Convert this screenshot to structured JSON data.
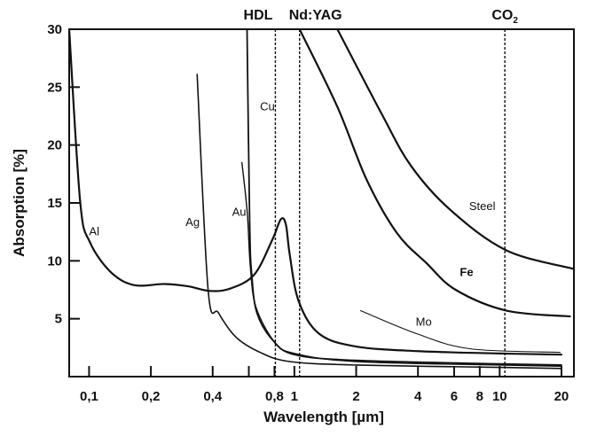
{
  "chart_data": {
    "type": "line",
    "title": "",
    "xlabel": "Wavelength [µm]",
    "ylabel": "Absorption [%]",
    "xscale": "log",
    "xlim": [
      0.08,
      23
    ],
    "ylim": [
      0,
      30
    ],
    "grid": false,
    "legend": "none (curves labelled inline)",
    "x_ticks": [
      {
        "value": 0.1,
        "label": "0,1"
      },
      {
        "value": 0.2,
        "label": "0,2"
      },
      {
        "value": 0.4,
        "label": "0,4"
      },
      {
        "value": 0.6,
        "label": ""
      },
      {
        "value": 0.8,
        "label": "0,8"
      },
      {
        "value": 1,
        "label": "1"
      },
      {
        "value": 2,
        "label": "2"
      },
      {
        "value": 4,
        "label": "4"
      },
      {
        "value": 6,
        "label": "6"
      },
      {
        "value": 8,
        "label": "8"
      },
      {
        "value": 10,
        "label": "10"
      },
      {
        "value": 20,
        "label": "20"
      }
    ],
    "y_ticks": [
      {
        "value": 5,
        "label": "5"
      },
      {
        "value": 10,
        "label": "10"
      },
      {
        "value": 15,
        "label": "15"
      },
      {
        "value": 20,
        "label": "20"
      },
      {
        "value": 25,
        "label": "25"
      },
      {
        "value": 30,
        "label": "30"
      }
    ],
    "laser_lines": [
      {
        "label": "HDL",
        "value": 0.808
      },
      {
        "label": "Nd:YAG",
        "value": 1.06
      },
      {
        "label": "CO",
        "subscript": "2",
        "value": 10.6
      }
    ],
    "series": [
      {
        "name": "Al",
        "width": 2.2,
        "label_at": [
          0.1,
          12.2
        ],
        "points": [
          [
            0.08,
            30
          ],
          [
            0.0905,
            15.1
          ],
          [
            0.101,
            11.6
          ],
          [
            0.128,
            9.0
          ],
          [
            0.166,
            7.9
          ],
          [
            0.234,
            8.0
          ],
          [
            0.304,
            7.8
          ],
          [
            0.386,
            7.4
          ],
          [
            0.486,
            7.6
          ],
          [
            0.637,
            8.8
          ],
          [
            0.78,
            11.8
          ],
          [
            0.86,
            13.6
          ],
          [
            0.91,
            13.1
          ],
          [
            0.95,
            10.5
          ],
          [
            1.05,
            6.5
          ],
          [
            1.32,
            3.7
          ],
          [
            2,
            2.6
          ],
          [
            4,
            2.2
          ],
          [
            10,
            2.0
          ],
          [
            20,
            1.9
          ]
        ]
      },
      {
        "name": "Ag",
        "width": 1.6,
        "label_at": [
          0.295,
          13.0
        ],
        "points": [
          [
            0.336,
            26.1
          ],
          [
            0.38,
            7.5
          ],
          [
            0.427,
            5.5
          ],
          [
            0.52,
            3.4
          ],
          [
            0.68,
            2.1
          ],
          [
            0.95,
            1.3
          ],
          [
            2,
            1.0
          ],
          [
            10,
            0.8
          ],
          [
            20,
            0.7
          ]
        ]
      },
      {
        "name": "Au",
        "width": 1.4,
        "label_at": [
          0.497,
          13.9
        ],
        "points": [
          [
            0.555,
            18.5
          ],
          [
            0.59,
            14.1
          ],
          [
            0.61,
            9.5
          ],
          [
            0.65,
            6.0
          ],
          [
            0.8,
            3.0
          ],
          [
            1.0,
            2.0
          ],
          [
            2,
            1.3
          ],
          [
            10,
            1.0
          ],
          [
            20,
            0.9
          ]
        ]
      },
      {
        "name": "Cu",
        "width": 1.8,
        "label_at": [
          0.68,
          23
        ],
        "points": [
          [
            0.588,
            30
          ],
          [
            0.606,
            13.1
          ],
          [
            0.62,
            8.8
          ],
          [
            0.657,
            5.5
          ],
          [
            0.78,
            3.2
          ],
          [
            1.0,
            1.9
          ],
          [
            2,
            1.4
          ],
          [
            10,
            1.1
          ],
          [
            20,
            1.0
          ]
        ]
      },
      {
        "name": "Steel",
        "width": 2.2,
        "label_at": [
          7.1,
          14.4
        ],
        "points": [
          [
            1.62,
            30
          ],
          [
            2.66,
            22.7
          ],
          [
            3.7,
            18.2
          ],
          [
            5.75,
            14.4
          ],
          [
            10.8,
            10.9
          ],
          [
            23,
            9.3
          ]
        ]
      },
      {
        "name": "Fe",
        "width": 2.2,
        "label_at": [
          6.4,
          8.7
        ],
        "points": [
          [
            1.06,
            30
          ],
          [
            1.62,
            23.3
          ],
          [
            2.25,
            17
          ],
          [
            3.16,
            12.4
          ],
          [
            4.4,
            9.8
          ],
          [
            6.1,
            7.5
          ],
          [
            10.8,
            5.7
          ],
          [
            22,
            5.2
          ]
        ]
      },
      {
        "name": "Mo",
        "width": 1.1,
        "label_at": [
          3.9,
          4.4
        ],
        "points": [
          [
            2.1,
            5.7
          ],
          [
            3.95,
            3.7
          ],
          [
            7.2,
            2.4
          ],
          [
            19.7,
            2.1
          ]
        ]
      }
    ]
  }
}
